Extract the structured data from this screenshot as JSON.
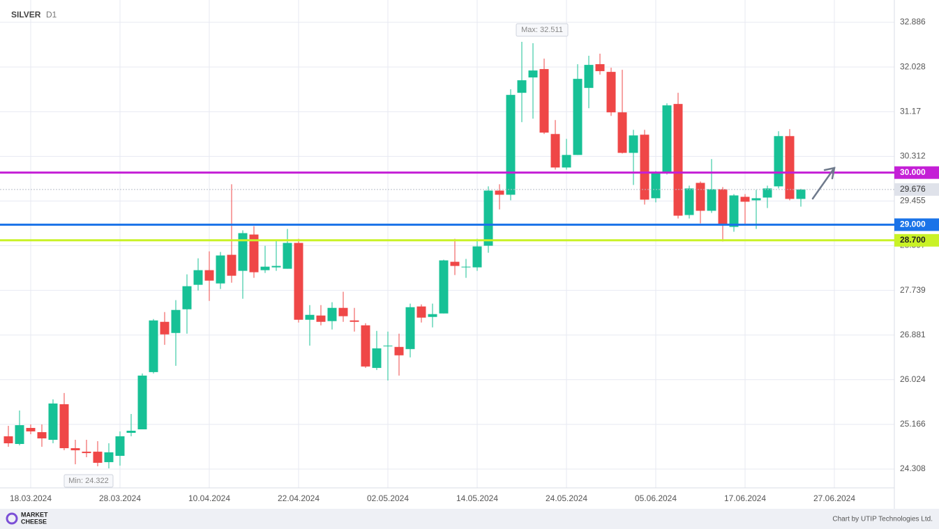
{
  "header": {
    "symbol": "SILVER",
    "timeframe": "D1",
    "logo_lines": [
      "MARKET",
      "CHEESE"
    ],
    "credit": "Chart by UTIP Technologies Ltd."
  },
  "chart_data": {
    "type": "candlestick",
    "categories": [
      null,
      null,
      "18.03.2024",
      null,
      null,
      null,
      null,
      null,
      null,
      null,
      "28.03.2024",
      null,
      null,
      null,
      null,
      null,
      null,
      null,
      "10.04.2024",
      null,
      null,
      null,
      null,
      null,
      null,
      null,
      "22.04.2024",
      null,
      null,
      null,
      null,
      null,
      null,
      null,
      "02.05.2024",
      null,
      null,
      null,
      null,
      null,
      null,
      null,
      "14.05.2024",
      null,
      null,
      null,
      null,
      null,
      null,
      null,
      "24.05.2024",
      null,
      null,
      null,
      null,
      null,
      null,
      null,
      "05.06.2024",
      null,
      null,
      null,
      null,
      null,
      null,
      null,
      "17.06.2024",
      null,
      null,
      null,
      null,
      null,
      null,
      null,
      "27.06.2024"
    ],
    "open": [
      24.937,
      24.79,
      25.098,
      25.017,
      24.87,
      25.553,
      24.709,
      24.642,
      24.642,
      24.441,
      24.562,
      25.004,
      25.071,
      26.17,
      27.135,
      26.921,
      27.376,
      27.846,
      28.127,
      27.872,
      28.422,
      28.114,
      28.811,
      28.127,
      28.181,
      28.154,
      28.65,
      27.175,
      27.256,
      27.149,
      27.403,
      27.162,
      27.068,
      26.25,
      26.666,
      26.653,
      26.612,
      27.43,
      27.229,
      27.296,
      28.288,
      28.181,
      28.181,
      28.596,
      29.655,
      29.575,
      31.532,
      31.827,
      31.988,
      30.741,
      30.098,
      30.339,
      31.626,
      32.082,
      31.934,
      31.157,
      30.379,
      30.728,
      29.508,
      30.004,
      31.318,
      29.186,
      29.803,
      29.267,
      29.682,
      28.958,
      29.535,
      29.468,
      29.521,
      29.736,
      30.701,
      29.495,
      null,
      null,
      null
    ],
    "high": [
      25.138,
      25.433,
      25.165,
      25.165,
      25.647,
      25.768,
      24.87,
      24.87,
      24.843,
      24.803,
      25.031,
      25.366,
      26.143,
      27.189,
      27.323,
      27.551,
      28.047,
      28.355,
      28.489,
      28.476,
      29.776,
      28.891,
      28.972,
      28.596,
      28.69,
      28.918,
      28.73,
      27.457,
      27.457,
      27.511,
      27.712,
      27.403,
      27.108,
      26.961,
      26.948,
      26.907,
      27.484,
      27.47,
      27.484,
      28.328,
      28.73,
      28.342,
      28.73,
      29.736,
      29.776,
      31.599,
      32.511,
      32.484,
      32.189,
      31.009,
      30.647,
      32.082,
      32.243,
      32.283,
      32.015,
      31.974,
      30.822,
      30.822,
      30.031,
      31.331,
      31.532,
      29.749,
      29.83,
      30.259,
      29.722,
      29.588,
      29.588,
      29.669,
      29.749,
      30.795,
      30.835,
      29.69,
      null,
      null,
      null
    ],
    "low": [
      24.736,
      24.763,
      24.977,
      24.736,
      24.803,
      24.669,
      24.401,
      24.535,
      24.361,
      24.322,
      24.374,
      24.937,
      25.071,
      26.143,
      26.693,
      26.291,
      26.907,
      27.738,
      27.537,
      27.765,
      27.886,
      27.578,
      27.98,
      28.073,
      28.114,
      28.154,
      27.122,
      26.679,
      27.068,
      26.988,
      27.135,
      26.948,
      26.25,
      26.21,
      26.009,
      26.103,
      26.452,
      27.122,
      27.028,
      27.296,
      28.033,
      27.98,
      28.114,
      28.462,
      29.293,
      29.468,
      30.969,
      31.036,
      30.741,
      30.058,
      30.058,
      30.339,
      31.237,
      31.881,
      31.09,
      30.366,
      29.763,
      29.387,
      29.428,
      29.964,
      29.119,
      29.119,
      29.025,
      29.226,
      28.677,
      28.865,
      28.985,
      28.918,
      29.32,
      29.696,
      29.468,
      29.347,
      null,
      null,
      null
    ],
    "close": [
      24.803,
      25.151,
      25.031,
      24.897,
      25.567,
      24.709,
      24.669,
      24.615,
      24.428,
      24.629,
      24.937,
      25.044,
      26.103,
      27.162,
      26.894,
      27.363,
      27.819,
      28.127,
      27.926,
      28.409,
      28.02,
      28.838,
      28.087,
      28.194,
      28.208,
      28.65,
      27.175,
      27.269,
      27.135,
      27.403,
      27.243,
      27.135,
      26.277,
      26.626,
      26.679,
      26.492,
      27.416,
      27.216,
      27.283,
      28.315,
      28.208,
      28.194,
      28.583,
      29.655,
      29.575,
      31.492,
      31.773,
      31.961,
      30.768,
      30.098,
      30.339,
      31.8,
      32.068,
      31.948,
      31.157,
      30.379,
      30.714,
      29.481,
      30.004,
      31.291,
      29.173,
      29.696,
      29.267,
      29.682,
      28.985,
      29.562,
      29.441,
      29.508,
      29.696,
      30.701,
      29.495,
      29.676,
      null,
      null,
      null
    ],
    "up_color": "#17c196",
    "down_color": "#ef4747",
    "ylim": [
      23.947,
      33.314
    ],
    "yticks": [
      24.308,
      25.166,
      26.024,
      26.881,
      27.739,
      28.597,
      29.455,
      30.312,
      31.17,
      32.028,
      32.886
    ],
    "grid": true,
    "current_price": 29.676,
    "levels": [
      {
        "value": 30,
        "label": "30.000",
        "color": "#c41fd6"
      },
      {
        "value": 29,
        "label": "29.000",
        "color": "#1a73e8"
      },
      {
        "value": 28.7,
        "label": "28.700",
        "color": "#c9f227"
      }
    ],
    "max_label": "Max: 32.511",
    "min_label": "Min: 24.322"
  }
}
